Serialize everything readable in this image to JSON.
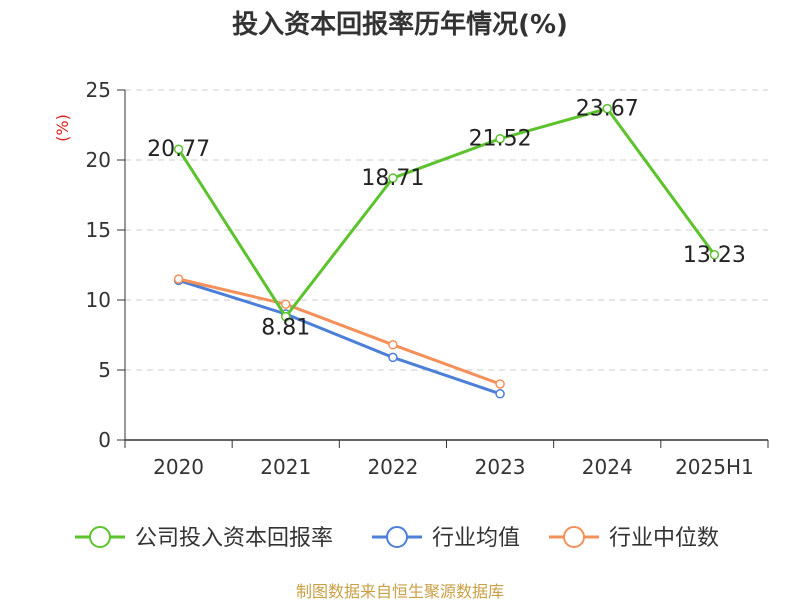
{
  "chart_data": {
    "type": "line",
    "title": "投入资本回报率历年情况(%)",
    "ylabel": "(%)",
    "categories": [
      "2020",
      "2021",
      "2022",
      "2023",
      "2024",
      "2025H1"
    ],
    "ylim": [
      0,
      25
    ],
    "yticks": [
      0,
      5,
      10,
      15,
      20,
      25
    ],
    "grid": true,
    "legend_position": "bottom",
    "series": [
      {
        "name": "公司投入资本回报率",
        "values": [
          20.77,
          8.81,
          18.71,
          21.52,
          23.67,
          13.23
        ],
        "labels": [
          "20.77",
          "8.81",
          "18.71",
          "21.52",
          "23.67",
          "13.23"
        ],
        "color": "#5cc32e"
      },
      {
        "name": "行业均值",
        "values": [
          11.4,
          9.0,
          5.9,
          3.3,
          null,
          null
        ],
        "color": "#4c7fd8"
      },
      {
        "name": "行业中位数",
        "values": [
          11.5,
          9.7,
          6.8,
          4.0,
          null,
          null
        ],
        "color": "#f4915a"
      }
    ]
  },
  "footer": "制图数据来自恒生聚源数据库"
}
